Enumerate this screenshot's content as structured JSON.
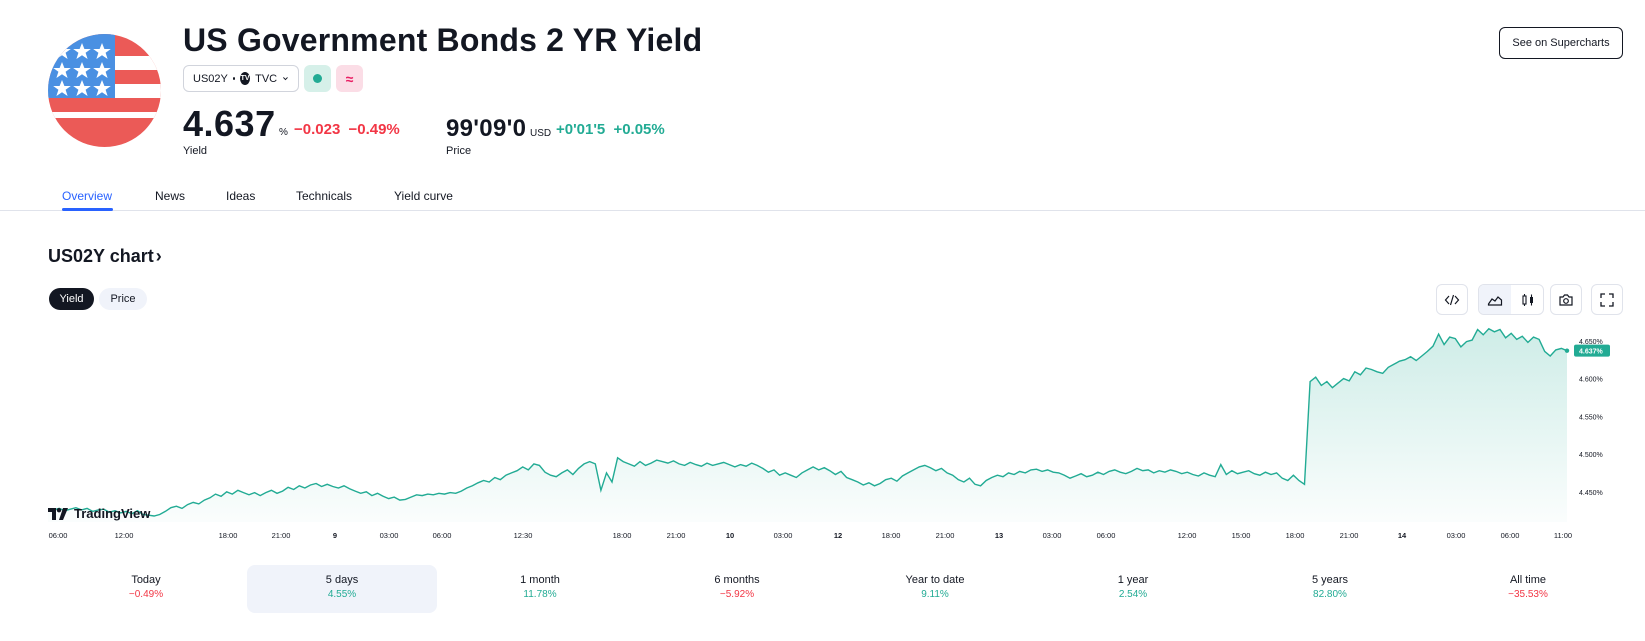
{
  "header": {
    "title": "US Government Bonds 2 YR Yield",
    "symbol": "US02Y",
    "exchange": "TVC",
    "pink_badge_glyph": "≈",
    "yield_value": "4.637",
    "yield_unit": "%",
    "yield_change": "−0.023",
    "yield_change_pct": "−0.49%",
    "yield_label": "Yield",
    "price_value": "99'09'0",
    "price_unit": "USD",
    "price_change": "+0'01'5",
    "price_change_pct": "+0.05%",
    "price_label": "Price",
    "supercharts_label": "See on Supercharts"
  },
  "tabs": [
    "Overview",
    "News",
    "Ideas",
    "Technicals",
    "Yield curve"
  ],
  "active_tab": "Overview",
  "chart_section": {
    "title": "US02Y chart",
    "chevron": "›",
    "toggle": [
      "Yield",
      "Price"
    ],
    "active_toggle": "Yield",
    "watermark": "TradingView",
    "tools": [
      "embed-code-icon",
      "area-chart-icon",
      "candles-icon",
      "camera-icon",
      "fullscreen-icon"
    ]
  },
  "chart_data": {
    "type": "area",
    "line_color": "#22ab94",
    "y_ticks": [
      "4.650%",
      "4.600%",
      "4.550%",
      "4.500%",
      "4.450%"
    ],
    "last_label": "4.637%",
    "ylim": [
      4.41,
      4.675
    ],
    "x_ticks": [
      "06:00",
      "12:00",
      "18:00",
      "21:00",
      "9",
      "03:00",
      "06:00",
      "12:30",
      "18:00",
      "21:00",
      "10",
      "03:00",
      "12",
      "18:00",
      "21:00",
      "13",
      "03:00",
      "06:00",
      "12:00",
      "15:00",
      "18:00",
      "21:00",
      "14",
      "03:00",
      "06:00",
      "11:00"
    ],
    "series": [
      {
        "values": [
          4.427,
          4.426,
          4.428,
          4.425,
          4.427,
          4.429,
          4.426,
          4.428,
          4.424,
          4.426,
          4.427,
          4.423,
          4.425,
          4.422,
          4.424,
          4.421,
          4.425,
          4.42,
          4.419,
          4.418,
          4.42,
          4.424,
          4.429,
          4.431,
          4.428,
          4.433,
          4.436,
          4.434,
          4.439,
          4.442,
          4.447,
          4.444,
          4.45,
          4.447,
          4.452,
          4.449,
          4.446,
          4.449,
          4.445,
          4.449,
          4.452,
          4.448,
          4.451,
          4.456,
          4.453,
          4.458,
          4.455,
          4.459,
          4.461,
          4.457,
          4.46,
          4.457,
          4.455,
          4.458,
          4.454,
          4.451,
          4.448,
          4.45,
          4.445,
          4.448,
          4.444,
          4.441,
          4.443,
          4.439,
          4.44,
          4.443,
          4.446,
          4.445,
          4.447,
          4.446,
          4.448,
          4.447,
          4.449,
          4.448,
          4.451,
          4.455,
          4.458,
          4.462,
          4.465,
          4.463,
          4.469,
          4.466,
          4.472,
          4.475,
          4.478,
          4.483,
          4.479,
          4.487,
          4.485,
          4.476,
          4.472,
          4.47,
          4.475,
          4.479,
          4.473,
          4.481,
          4.487,
          4.49,
          4.487,
          4.452,
          4.475,
          4.463,
          4.495,
          4.49,
          4.487,
          4.484,
          4.49,
          4.485,
          4.488,
          4.492,
          4.49,
          4.488,
          4.491,
          4.487,
          4.485,
          4.489,
          4.486,
          4.484,
          4.488,
          4.485,
          4.487,
          4.489,
          4.486,
          4.483,
          4.486,
          4.484,
          4.488,
          4.485,
          4.481,
          4.476,
          4.479,
          4.472,
          4.475,
          4.472,
          4.469,
          4.475,
          4.479,
          4.483,
          4.479,
          4.482,
          4.478,
          4.473,
          4.477,
          4.469,
          4.466,
          4.463,
          4.459,
          4.462,
          4.458,
          4.461,
          4.466,
          4.468,
          4.464,
          4.471,
          4.475,
          4.479,
          4.483,
          4.485,
          4.482,
          4.478,
          4.481,
          4.475,
          4.472,
          4.466,
          4.463,
          4.468,
          4.46,
          4.458,
          4.465,
          4.469,
          4.472,
          4.47,
          4.475,
          4.473,
          4.477,
          4.475,
          4.479,
          4.48,
          4.477,
          4.479,
          4.476,
          4.475,
          4.472,
          4.468,
          4.471,
          4.474,
          4.47,
          4.472,
          4.476,
          4.473,
          4.477,
          4.479,
          4.476,
          4.474,
          4.477,
          4.481,
          4.478,
          4.479,
          4.475,
          4.478,
          4.476,
          4.479,
          4.477,
          4.474,
          4.476,
          4.473,
          4.471,
          4.475,
          4.472,
          4.47,
          4.486,
          4.473,
          4.478,
          4.474,
          4.476,
          4.478,
          4.474,
          4.472,
          4.476,
          4.473,
          4.475,
          4.468,
          4.465,
          4.472,
          4.465,
          4.46,
          4.596,
          4.602,
          4.591,
          4.596,
          4.588,
          4.594,
          4.6,
          4.597,
          4.609,
          4.605,
          4.614,
          4.612,
          4.609,
          4.607,
          4.615,
          4.619,
          4.623,
          4.625,
          4.629,
          4.624,
          4.63,
          4.636,
          4.643,
          4.659,
          4.645,
          4.655,
          4.653,
          4.642,
          4.649,
          4.651,
          4.665,
          4.658,
          4.666,
          4.662,
          4.665,
          4.654,
          4.66,
          4.652,
          4.656,
          4.648,
          4.655,
          4.652,
          4.636,
          4.63,
          4.638,
          4.64,
          4.637
        ]
      }
    ]
  },
  "periods": [
    {
      "label": "Today",
      "value": "−0.49%",
      "sign": "neg"
    },
    {
      "label": "5 days",
      "value": "4.55%",
      "sign": "pos"
    },
    {
      "label": "1 month",
      "value": "11.78%",
      "sign": "pos"
    },
    {
      "label": "6 months",
      "value": "−5.92%",
      "sign": "neg"
    },
    {
      "label": "Year to date",
      "value": "9.11%",
      "sign": "pos"
    },
    {
      "label": "1 year",
      "value": "2.54%",
      "sign": "pos"
    },
    {
      "label": "5 years",
      "value": "82.80%",
      "sign": "pos"
    },
    {
      "label": "All time",
      "value": "−35.53%",
      "sign": "neg"
    }
  ],
  "selected_period": "5 days"
}
